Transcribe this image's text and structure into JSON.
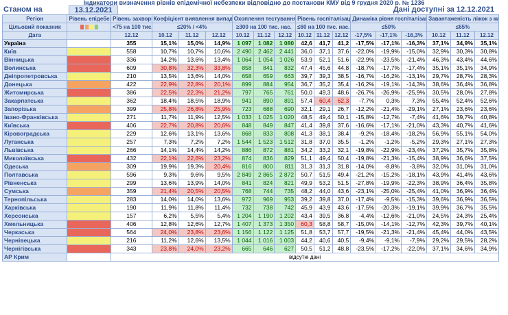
{
  "title": "Індикатори визначення рівнів епідемічної небезпеки відповідно до постанови КМУ від 9 грудня 2020 р. № 1236",
  "header": {
    "as_of_label": "Станом на",
    "as_of_date": "13.12.2021",
    "available_label": "Дані доступні за 12.12.2021"
  },
  "columns": {
    "region": "Регіон",
    "target": "Цільовий показник",
    "date": "Дата",
    "level": "Рівень епідебезпеки",
    "incidence": "Рівень захворюваності",
    "incidence_target": "<75 на 100 тис. нас.",
    "coef": "Коефіцієнт виявлення випадків інфікування",
    "coef_target": "≤20% / <4%",
    "testing": "Охоплення тестуванням",
    "testing_target": "≥300 на 100 тис. нас.",
    "hosp": "Рівень госпіталізацій",
    "hosp_target": "≤60 на 100 тис. нас.",
    "dyn": "Динаміка рівня госпіталізацій",
    "dyn_target": "≤50%",
    "oxy": "Завантаженість ліжок з киснем",
    "oxy_target": "≤65%"
  },
  "dates": {
    "incidence": "12.12",
    "coef": [
      "10.12",
      "11.12",
      "12.12"
    ],
    "testing": [
      "10.12",
      "11.12",
      "12.12"
    ],
    "hosp": [
      "10.12",
      "11.12",
      "12.12"
    ],
    "dyn": [
      "-17,5%",
      "-17,1%",
      "-16,3%"
    ],
    "oxy": [
      "10.12",
      "11.12",
      "12.12"
    ]
  },
  "colors": {
    "red": "#e8675a",
    "orange": "#f4a460",
    "yellow": "#f5f07a",
    "green": "#8fce6a",
    "hl": "#f4c7c3"
  },
  "ukraine": {
    "name": "Україна",
    "incidence": "355",
    "coef": [
      "15,1%",
      "15,0%",
      "14,9%"
    ],
    "testing": [
      "1 097",
      "1 082",
      "1 080"
    ],
    "hosp": [
      "42,6",
      "41,7",
      "41,2"
    ],
    "dyn": [
      "-17,5%",
      "-17,1%",
      "-16,3%"
    ],
    "oxy": [
      "37,1%",
      "34,9%",
      "35,1%"
    ]
  },
  "regions": [
    {
      "name": "Київ",
      "level": "yellow",
      "incidence": "558",
      "coef": [
        "10,7%",
        "10,7%",
        "10,6%"
      ],
      "testing": [
        "2 490",
        "2 462",
        "2 441"
      ],
      "hosp": [
        "36,0",
        "37,1",
        "37,6"
      ],
      "dyn": [
        "-22,0%",
        "-19,9%",
        "-15,0%"
      ],
      "oxy": [
        "32,9%",
        "30,3%",
        "30,8%"
      ]
    },
    {
      "name": "Вінницька",
      "level": "red",
      "incidence": "336",
      "coef": [
        "14,2%",
        "13,6%",
        "13,4%"
      ],
      "testing": [
        "1 064",
        "1 054",
        "1 026"
      ],
      "hosp": [
        "53,9",
        "52,1",
        "51,6"
      ],
      "dyn": [
        "-22,9%",
        "-23,5%",
        "-21,4%"
      ],
      "oxy": [
        "46,3%",
        "43,4%",
        "44,6%"
      ]
    },
    {
      "name": "Волинська",
      "level": "red",
      "incidence": "609",
      "coef": [
        "30,8%",
        "32,3%",
        "33,8%"
      ],
      "testing": [
        "858",
        "841",
        "832"
      ],
      "hosp": [
        "47,4",
        "45,6",
        "44,8"
      ],
      "dyn": [
        "-18,7%",
        "-17,7%",
        "-17,4%"
      ],
      "oxy": [
        "35,1%",
        "35,1%",
        "34,9%"
      ]
    },
    {
      "name": "Дніпропетровська",
      "level": "yellow",
      "incidence": "210",
      "coef": [
        "13,5%",
        "13,6%",
        "14,0%"
      ],
      "testing": [
        "658",
        "659",
        "663"
      ],
      "hosp": [
        "39,7",
        "39,3",
        "38,5"
      ],
      "dyn": [
        "-16,7%",
        "-16,2%",
        "-13,1%"
      ],
      "oxy": [
        "29,7%",
        "28,7%",
        "28,3%"
      ]
    },
    {
      "name": "Донецька",
      "level": "orange",
      "incidence": "422",
      "coef": [
        "22,9%",
        "22,8%",
        "20,1%"
      ],
      "testing": [
        "899",
        "884",
        "954"
      ],
      "hosp": [
        "36,7",
        "35,2",
        "35,4"
      ],
      "dyn": [
        "-16,2%",
        "-19,1%",
        "-14,3%"
      ],
      "oxy": [
        "38,6%",
        "36,4%",
        "36,8%"
      ]
    },
    {
      "name": "Житомирська",
      "level": "red",
      "incidence": "386",
      "coef": [
        "22,5%",
        "22,3%",
        "21,2%"
      ],
      "testing": [
        "797",
        "765",
        "761"
      ],
      "hosp": [
        "50,0",
        "49,3",
        "48,6"
      ],
      "dyn": [
        "-26,7%",
        "-26,9%",
        "-25,9%"
      ],
      "oxy": [
        "30,5%",
        "28,0%",
        "27,8%"
      ]
    },
    {
      "name": "Закарпатська",
      "level": "yellow",
      "incidence": "362",
      "coef": [
        "18,4%",
        "18,5%",
        "18,9%"
      ],
      "testing": [
        "941",
        "890",
        "891"
      ],
      "hosp": [
        "57,4",
        "60,4",
        "62,3"
      ],
      "dyn": [
        "-7,7%",
        "0,3%",
        "7,3%"
      ],
      "oxy": [
        "55,4%",
        "52,4%",
        "52,6%"
      ]
    },
    {
      "name": "Запорізька",
      "level": "orange",
      "incidence": "399",
      "coef": [
        "25,8%",
        "26,8%",
        "25,9%"
      ],
      "testing": [
        "723",
        "688",
        "690"
      ],
      "hosp": [
        "32,1",
        "29,1",
        "26,7"
      ],
      "dyn": [
        "-12,2%",
        "-21,4%",
        "-29,1%"
      ],
      "oxy": [
        "27,1%",
        "23,6%",
        "23,6%"
      ]
    },
    {
      "name": "Івано-Франківська",
      "level": "yellow",
      "incidence": "271",
      "coef": [
        "11,7%",
        "11,9%",
        "12,5%"
      ],
      "testing": [
        "1 033",
        "1 025",
        "1 020"
      ],
      "hosp": [
        "48,5",
        "49,4",
        "50,1"
      ],
      "dyn": [
        "-15,8%",
        "-12,7%",
        "-7,4%"
      ],
      "oxy": [
        "41,6%",
        "39,7%",
        "40,8%"
      ]
    },
    {
      "name": "Київська",
      "level": "red",
      "incidence": "406",
      "coef": [
        "22,7%",
        "20,8%",
        "20,6%"
      ],
      "testing": [
        "848",
        "849",
        "847"
      ],
      "hosp": [
        "41,4",
        "39,8",
        "37,6"
      ],
      "dyn": [
        "-16,6%",
        "-17,1%",
        "-21,0%"
      ],
      "oxy": [
        "43,3%",
        "40,7%",
        "41,6%"
      ]
    },
    {
      "name": "Кіровоградська",
      "level": "yellow",
      "incidence": "229",
      "coef": [
        "12,6%",
        "13,1%",
        "13,6%"
      ],
      "testing": [
        "868",
        "833",
        "808"
      ],
      "hosp": [
        "41,3",
        "38,1",
        "38,4"
      ],
      "dyn": [
        "-9,2%",
        "-18,4%",
        "-18,2%"
      ],
      "oxy": [
        "56,9%",
        "55,1%",
        "54,0%"
      ]
    },
    {
      "name": "Луганська",
      "level": "yellow",
      "incidence": "257",
      "coef": [
        "7,3%",
        "7,2%",
        "7,2%"
      ],
      "testing": [
        "1 544",
        "1 523",
        "1 512"
      ],
      "hosp": [
        "31,8",
        "37,0",
        "35,5"
      ],
      "dyn": [
        "-1,2%",
        "-1,2%",
        "-5,2%"
      ],
      "oxy": [
        "29,3%",
        "27,1%",
        "27,3%"
      ]
    },
    {
      "name": "Львівська",
      "level": "yellow",
      "incidence": "266",
      "coef": [
        "14,1%",
        "14,4%",
        "14,2%"
      ],
      "testing": [
        "886",
        "872",
        "881"
      ],
      "hosp": [
        "34,2",
        "33,2",
        "32,1"
      ],
      "dyn": [
        "-19,8%",
        "-22,9%",
        "-23,4%"
      ],
      "oxy": [
        "37,2%",
        "35,7%",
        "35,8%"
      ]
    },
    {
      "name": "Миколаївська",
      "level": "red",
      "incidence": "432",
      "coef": [
        "22,1%",
        "22,6%",
        "23,2%"
      ],
      "testing": [
        "874",
        "836",
        "829"
      ],
      "hosp": [
        "51,1",
        "49,4",
        "50,4"
      ],
      "dyn": [
        "-19,8%",
        "-21,3%",
        "-15,4%"
      ],
      "oxy": [
        "38,9%",
        "36,6%",
        "37,5%"
      ]
    },
    {
      "name": "Одеська",
      "level": "orange",
      "incidence": "309",
      "coef": [
        "19,9%",
        "19,3%",
        "20,4%"
      ],
      "testing": [
        "816",
        "800",
        "811"
      ],
      "hosp": [
        "31,3",
        "31,3",
        "31,8"
      ],
      "dyn": [
        "-14,0%",
        "-8,8%",
        "-3,8%"
      ],
      "oxy": [
        "32,0%",
        "31,0%",
        "31,0%"
      ]
    },
    {
      "name": "Полтавська",
      "level": "yellow",
      "incidence": "596",
      "coef": [
        "9,3%",
        "9,6%",
        "9,5%"
      ],
      "testing": [
        "2 849",
        "2 865",
        "2 872"
      ],
      "hosp": [
        "50,7",
        "51,5",
        "49,4"
      ],
      "dyn": [
        "-21,2%",
        "-15,2%",
        "-18,1%"
      ],
      "oxy": [
        "43,9%",
        "41,4%",
        "43,6%"
      ]
    },
    {
      "name": "Рівненська",
      "level": "yellow",
      "incidence": "299",
      "coef": [
        "13,6%",
        "13,9%",
        "14,0%"
      ],
      "testing": [
        "841",
        "824",
        "821"
      ],
      "hosp": [
        "49,9",
        "53,2",
        "51,5"
      ],
      "dyn": [
        "-27,8%",
        "-19,9%",
        "-22,3%"
      ],
      "oxy": [
        "38,9%",
        "36,4%",
        "35,8%"
      ]
    },
    {
      "name": "Сумська",
      "level": "orange",
      "incidence": "359",
      "coef": [
        "21,4%",
        "20,5%",
        "20,5%"
      ],
      "testing": [
        "768",
        "744",
        "735"
      ],
      "hosp": [
        "48,2",
        "44,0",
        "43,6"
      ],
      "dyn": [
        "-23,1%",
        "-25,0%",
        "-25,4%"
      ],
      "oxy": [
        "41,0%",
        "36,9%",
        "36,4%"
      ]
    },
    {
      "name": "Тернопільська",
      "level": "yellow",
      "incidence": "283",
      "coef": [
        "14,0%",
        "14,0%",
        "13,6%"
      ],
      "testing": [
        "972",
        "969",
        "953"
      ],
      "hosp": [
        "39,2",
        "39,8",
        "37,0"
      ],
      "dyn": [
        "-17,4%",
        "-9,5%",
        "-15,3%"
      ],
      "oxy": [
        "39,6%",
        "36,9%",
        "36,5%"
      ]
    },
    {
      "name": "Харківська",
      "level": "yellow",
      "incidence": "190",
      "coef": [
        "11,9%",
        "11,8%",
        "11,4%"
      ],
      "testing": [
        "732",
        "738",
        "742"
      ],
      "hosp": [
        "45,9",
        "43,9",
        "43,6"
      ],
      "dyn": [
        "-17,5%",
        "-20,3%",
        "-19,1%"
      ],
      "oxy": [
        "39,9%",
        "36,7%",
        "35,5%"
      ]
    },
    {
      "name": "Херсонська",
      "level": "yellow",
      "incidence": "157",
      "coef": [
        "6,2%",
        "5,5%",
        "5,4%"
      ],
      "testing": [
        "1 204",
        "1 190",
        "1 202"
      ],
      "hosp": [
        "43,4",
        "39,5",
        "36,8"
      ],
      "dyn": [
        "-4,4%",
        "-12,6%",
        "-21,0%"
      ],
      "oxy": [
        "24,5%",
        "24,3%",
        "25,4%"
      ]
    },
    {
      "name": "Хмельницька",
      "level": "red",
      "incidence": "406",
      "coef": [
        "12,8%",
        "12,6%",
        "12,7%"
      ],
      "testing": [
        "1 407",
        "1 373",
        "1 350"
      ],
      "hosp": [
        "60,3",
        "58,8",
        "58,7"
      ],
      "dyn": [
        "-15,0%",
        "-14,1%",
        "-12,7%"
      ],
      "oxy": [
        "42,3%",
        "39,7%",
        "40,1%"
      ]
    },
    {
      "name": "Черкаська",
      "level": "red",
      "incidence": "564",
      "coef": [
        "24,0%",
        "23,8%",
        "23,6%"
      ],
      "testing": [
        "1 156",
        "1 122",
        "1 125"
      ],
      "hosp": [
        "51,8",
        "53,7",
        "57,7"
      ],
      "dyn": [
        "-19,5%",
        "-21,3%",
        "-21,4%"
      ],
      "oxy": [
        "45,4%",
        "44,0%",
        "43,5%"
      ]
    },
    {
      "name": "Чернівецька",
      "level": "yellow",
      "incidence": "216",
      "coef": [
        "11,2%",
        "12,6%",
        "13,5%"
      ],
      "testing": [
        "1 044",
        "1 016",
        "1 003"
      ],
      "hosp": [
        "44,2",
        "40,6",
        "40,5"
      ],
      "dyn": [
        "-9,4%",
        "-9,1%",
        "-7,9%"
      ],
      "oxy": [
        "29,2%",
        "29,5%",
        "28,2%"
      ]
    },
    {
      "name": "Чернігівська",
      "level": "red",
      "incidence": "343",
      "coef": [
        "23,8%",
        "24,0%",
        "23,2%"
      ],
      "testing": [
        "665",
        "646",
        "627"
      ],
      "hosp": [
        "50,5",
        "51,2",
        "48,8"
      ],
      "dyn": [
        "-23,5%",
        "-17,2%",
        "-22,0%"
      ],
      "oxy": [
        "37,1%",
        "34,6%",
        "34,9%"
      ]
    }
  ],
  "crimea": {
    "name": "АР Крим",
    "note": "відсутні дані"
  }
}
